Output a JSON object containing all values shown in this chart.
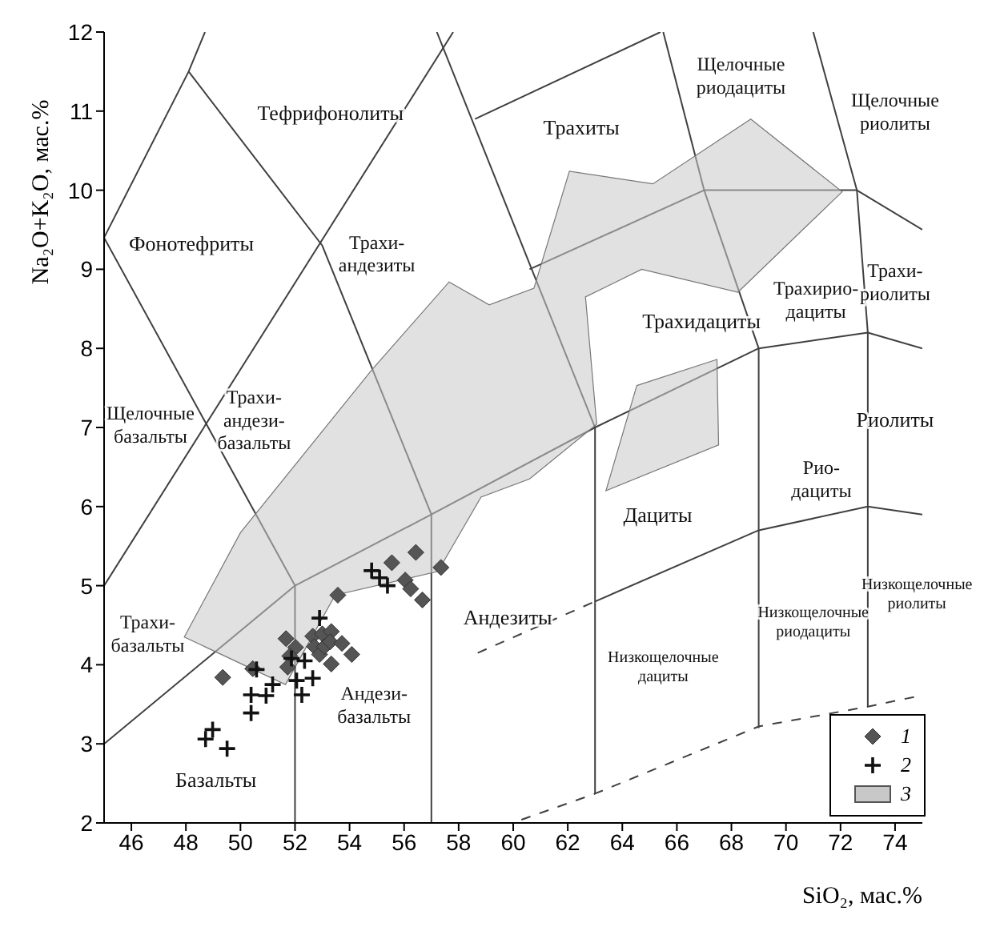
{
  "chart_data": {
    "type": "scatter",
    "xlabel": "SiO₂, мас.%",
    "ylabel": "Na₂O+K₂O, мас.%",
    "xlim": [
      45,
      75
    ],
    "ylim": [
      2,
      12
    ],
    "xticks": [
      46,
      48,
      50,
      52,
      54,
      56,
      58,
      60,
      62,
      64,
      66,
      68,
      70,
      72,
      74
    ],
    "yticks": [
      2,
      3,
      4,
      5,
      6,
      7,
      8,
      9,
      10,
      11,
      12
    ],
    "legend": "bottom right",
    "series": [
      {
        "type": "line",
        "color": "#404040",
        "line_style": "solid",
        "x": [
          45,
          52,
          57,
          63,
          69,
          73,
          75
        ],
        "values": [
          3.0,
          5,
          5.9,
          7,
          8,
          8.2,
          8.0
        ]
      },
      {
        "type": "line",
        "color": "#404040",
        "line_style": "solid",
        "x": [
          45,
          48.1,
          48.7
        ],
        "values": [
          9.4,
          11.5,
          12
        ]
      },
      {
        "type": "line",
        "color": "#404040",
        "line_style": "solid",
        "x": [
          48.1,
          53,
          57,
          57
        ],
        "values": [
          11.5,
          9.3,
          5.9,
          2
        ]
      },
      {
        "type": "line",
        "color": "#404040",
        "line_style": "solid",
        "x": [
          45,
          52,
          52
        ],
        "values": [
          9.4,
          5,
          2
        ]
      },
      {
        "type": "line",
        "color": "#404040",
        "line_style": "solid",
        "x": [
          45,
          57.8
        ],
        "values": [
          5,
          12
        ]
      },
      {
        "type": "line",
        "color": "#404040",
        "line_style": "solid",
        "x": [
          57.2,
          63,
          63
        ],
        "values": [
          12,
          7,
          2.37
        ]
      },
      {
        "type": "line",
        "color": "#404040",
        "line_style": "solid",
        "x": [
          58.6,
          65.4
        ],
        "values": [
          10.9,
          12
        ]
      },
      {
        "type": "line",
        "color": "#404040",
        "line_style": "solid",
        "x": [
          65.5,
          67,
          69,
          69
        ],
        "values": [
          12,
          10,
          8,
          3.2
        ]
      },
      {
        "type": "line",
        "color": "#404040",
        "line_style": "solid",
        "x": [
          60.6,
          67,
          72.6,
          75
        ],
        "values": [
          9.0,
          10,
          10,
          9.5
        ]
      },
      {
        "type": "line",
        "color": "#404040",
        "line_style": "solid",
        "x": [
          71,
          72.6,
          73,
          73
        ],
        "values": [
          12,
          10,
          8.2,
          3.47
        ]
      },
      {
        "type": "line",
        "color": "#404040",
        "line_style": "solid",
        "x": [
          63,
          69,
          73,
          75
        ],
        "values": [
          4.8,
          5.7,
          6.0,
          5.9
        ]
      },
      {
        "type": "line",
        "color": "#404040",
        "line_style": "dashed",
        "x": [
          58.7,
          63
        ],
        "values": [
          4.15,
          4.8
        ]
      },
      {
        "type": "line",
        "color": "#404040",
        "line_style": "dashed",
        "x": [
          60.3,
          63,
          69,
          73,
          74.8
        ],
        "values": [
          2.04,
          2.37,
          3.22,
          3.47,
          3.6
        ]
      },
      {
        "name": "1",
        "color": "#555555",
        "marker": "diamond",
        "x": [
          49.35,
          50.45,
          51.67,
          52.02,
          51.81,
          51.73,
          52.65,
          53.0,
          53.33,
          52.71,
          52.9,
          53.08,
          53.29,
          53.72,
          54.08,
          53.33,
          53.57,
          55.55,
          56.43,
          56.04,
          56.24,
          56.67,
          57.35
        ],
        "values": [
          3.84,
          3.95,
          4.33,
          4.22,
          4.11,
          3.97,
          4.36,
          4.39,
          4.42,
          4.23,
          4.13,
          4.23,
          4.29,
          4.27,
          4.13,
          4.01,
          4.88,
          5.29,
          5.42,
          5.07,
          4.96,
          4.82,
          5.23
        ]
      },
      {
        "name": "2",
        "color": "#111111",
        "marker": "cross",
        "x": [
          54.81,
          55.1,
          55.39,
          52.9,
          50.59,
          52.35,
          52.65,
          52.06,
          52.25,
          51.18,
          50.39,
          50.94,
          50.39,
          48.72,
          48.98,
          49.51,
          51.87
        ],
        "values": [
          5.19,
          5.1,
          5.0,
          4.59,
          3.94,
          4.05,
          3.83,
          3.8,
          3.62,
          3.75,
          3.62,
          3.61,
          3.39,
          3.06,
          3.18,
          2.94,
          4.08
        ]
      },
      {
        "type": "area",
        "name": "3",
        "color": "#c8c8c8",
        "x": [
          47.94,
          50.0,
          54.82,
          57.65,
          59.12,
          60.76,
          62.06,
          65.12,
          68.71,
          72.06,
          68.24,
          64.71,
          62.65,
          63.06,
          60.6,
          58.82,
          57.24,
          53.47,
          51.65
        ],
        "values": [
          4.35,
          5.67,
          7.73,
          8.84,
          8.55,
          8.76,
          10.24,
          10.08,
          10.9,
          9.98,
          8.71,
          9.0,
          8.65,
          7.04,
          6.35,
          6.12,
          5.18,
          4.88,
          3.75
        ]
      },
      {
        "type": "area",
        "color": "#c8c8c8",
        "x": [
          64.53,
          67.47,
          67.53,
          63.4
        ],
        "values": [
          7.53,
          7.86,
          6.78,
          6.2
        ]
      }
    ],
    "annotations": [
      "Тефрифонолиты",
      "Фонотефриты",
      "Трахи-\nандезиты",
      "Трахиты",
      "Щелочные\nриодациты",
      "Щелочные\nриолиты",
      "Трахи-\nриолиты",
      "Трахирио-\nдациты",
      "Трахидациты",
      "Щелочные\nбазальты",
      "Трахи-\nандези-\nбазальты",
      "Рио-\nдациты",
      "Риолиты",
      "Дациты",
      "Андезиты",
      "Трахи-\nбазальты",
      "Андези-\nбазальты",
      "Базальты",
      "Низкощелочные\nдациты",
      "Низкощелочные\nриодациты",
      "Низкощелочные\nриолиты"
    ]
  }
}
